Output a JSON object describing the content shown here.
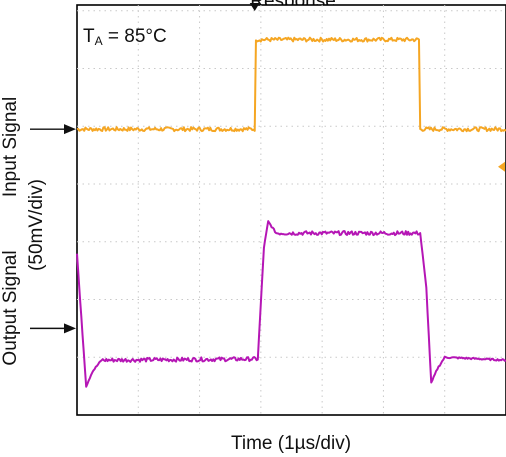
{
  "chart_data": {
    "type": "line",
    "title": "Response",
    "xlabel": "Time (1µs/div)",
    "ylabel_input": "Input Signal",
    "ylabel_output": "Output Signal",
    "ylabel_scale": "(50mV/div)",
    "annotation": {
      "prefix": "T",
      "subscript": "A",
      "suffix": " = 85°C"
    },
    "grid": true,
    "x_divisions": 7,
    "y_divisions": 7.1,
    "xlim": [
      0,
      7
    ],
    "ylim": [
      0,
      7.1
    ],
    "trigger_marker_x": 2.9,
    "series": [
      {
        "name": "Input Signal",
        "color": "#f5a623",
        "points": [
          [
            0,
            4.95
          ],
          [
            2.9,
            4.95
          ],
          [
            2.92,
            6.5
          ],
          [
            5.58,
            6.5
          ],
          [
            5.6,
            4.95
          ],
          [
            7,
            4.95
          ]
        ]
      },
      {
        "name": "Output Signal",
        "color": "#b516b5",
        "points": [
          [
            0,
            2.8
          ],
          [
            0.05,
            2.0
          ],
          [
            0.15,
            0.5
          ],
          [
            0.25,
            0.75
          ],
          [
            0.4,
            0.95
          ],
          [
            2.95,
            0.97
          ],
          [
            3.05,
            2.9
          ],
          [
            3.12,
            3.35
          ],
          [
            3.25,
            3.15
          ],
          [
            5.6,
            3.15
          ],
          [
            5.7,
            2.2
          ],
          [
            5.78,
            0.55
          ],
          [
            5.88,
            0.8
          ],
          [
            6.0,
            1.0
          ],
          [
            7,
            0.95
          ]
        ]
      }
    ],
    "arrow_input_level": 4.95,
    "arrow_output_level": 1.5
  }
}
